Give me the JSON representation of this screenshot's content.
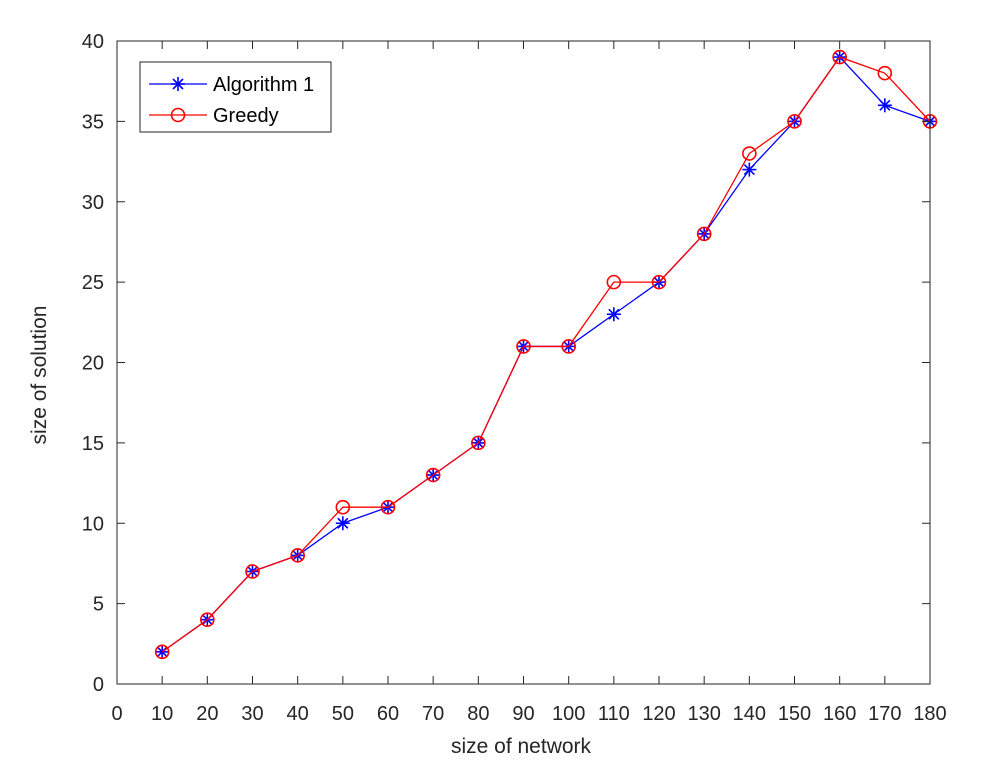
{
  "chart_data": {
    "type": "line",
    "title": "",
    "xlabel": "size of network",
    "ylabel": "size of solution",
    "xlim": [
      0,
      180
    ],
    "ylim": [
      0,
      40
    ],
    "xticks": [
      0,
      10,
      20,
      30,
      40,
      50,
      60,
      70,
      80,
      90,
      100,
      110,
      120,
      130,
      140,
      150,
      160,
      170,
      180
    ],
    "yticks": [
      0,
      5,
      10,
      15,
      20,
      25,
      30,
      35,
      40
    ],
    "grid": false,
    "legend_position": "top-left",
    "x": [
      10,
      20,
      30,
      40,
      50,
      60,
      70,
      80,
      90,
      100,
      110,
      120,
      130,
      140,
      150,
      160,
      170,
      180
    ],
    "series": [
      {
        "name": "Algorithm 1",
        "color": "#0000ff",
        "marker": "asterisk",
        "values": [
          2,
          4,
          7,
          8,
          10,
          11,
          13,
          15,
          21,
          21,
          23,
          25,
          28,
          32,
          35,
          39,
          36,
          35
        ]
      },
      {
        "name": "Greedy",
        "color": "#ff0000",
        "marker": "circle",
        "values": [
          2,
          4,
          7,
          8,
          11,
          11,
          13,
          15,
          21,
          21,
          25,
          25,
          28,
          33,
          35,
          39,
          38,
          35
        ]
      }
    ]
  }
}
